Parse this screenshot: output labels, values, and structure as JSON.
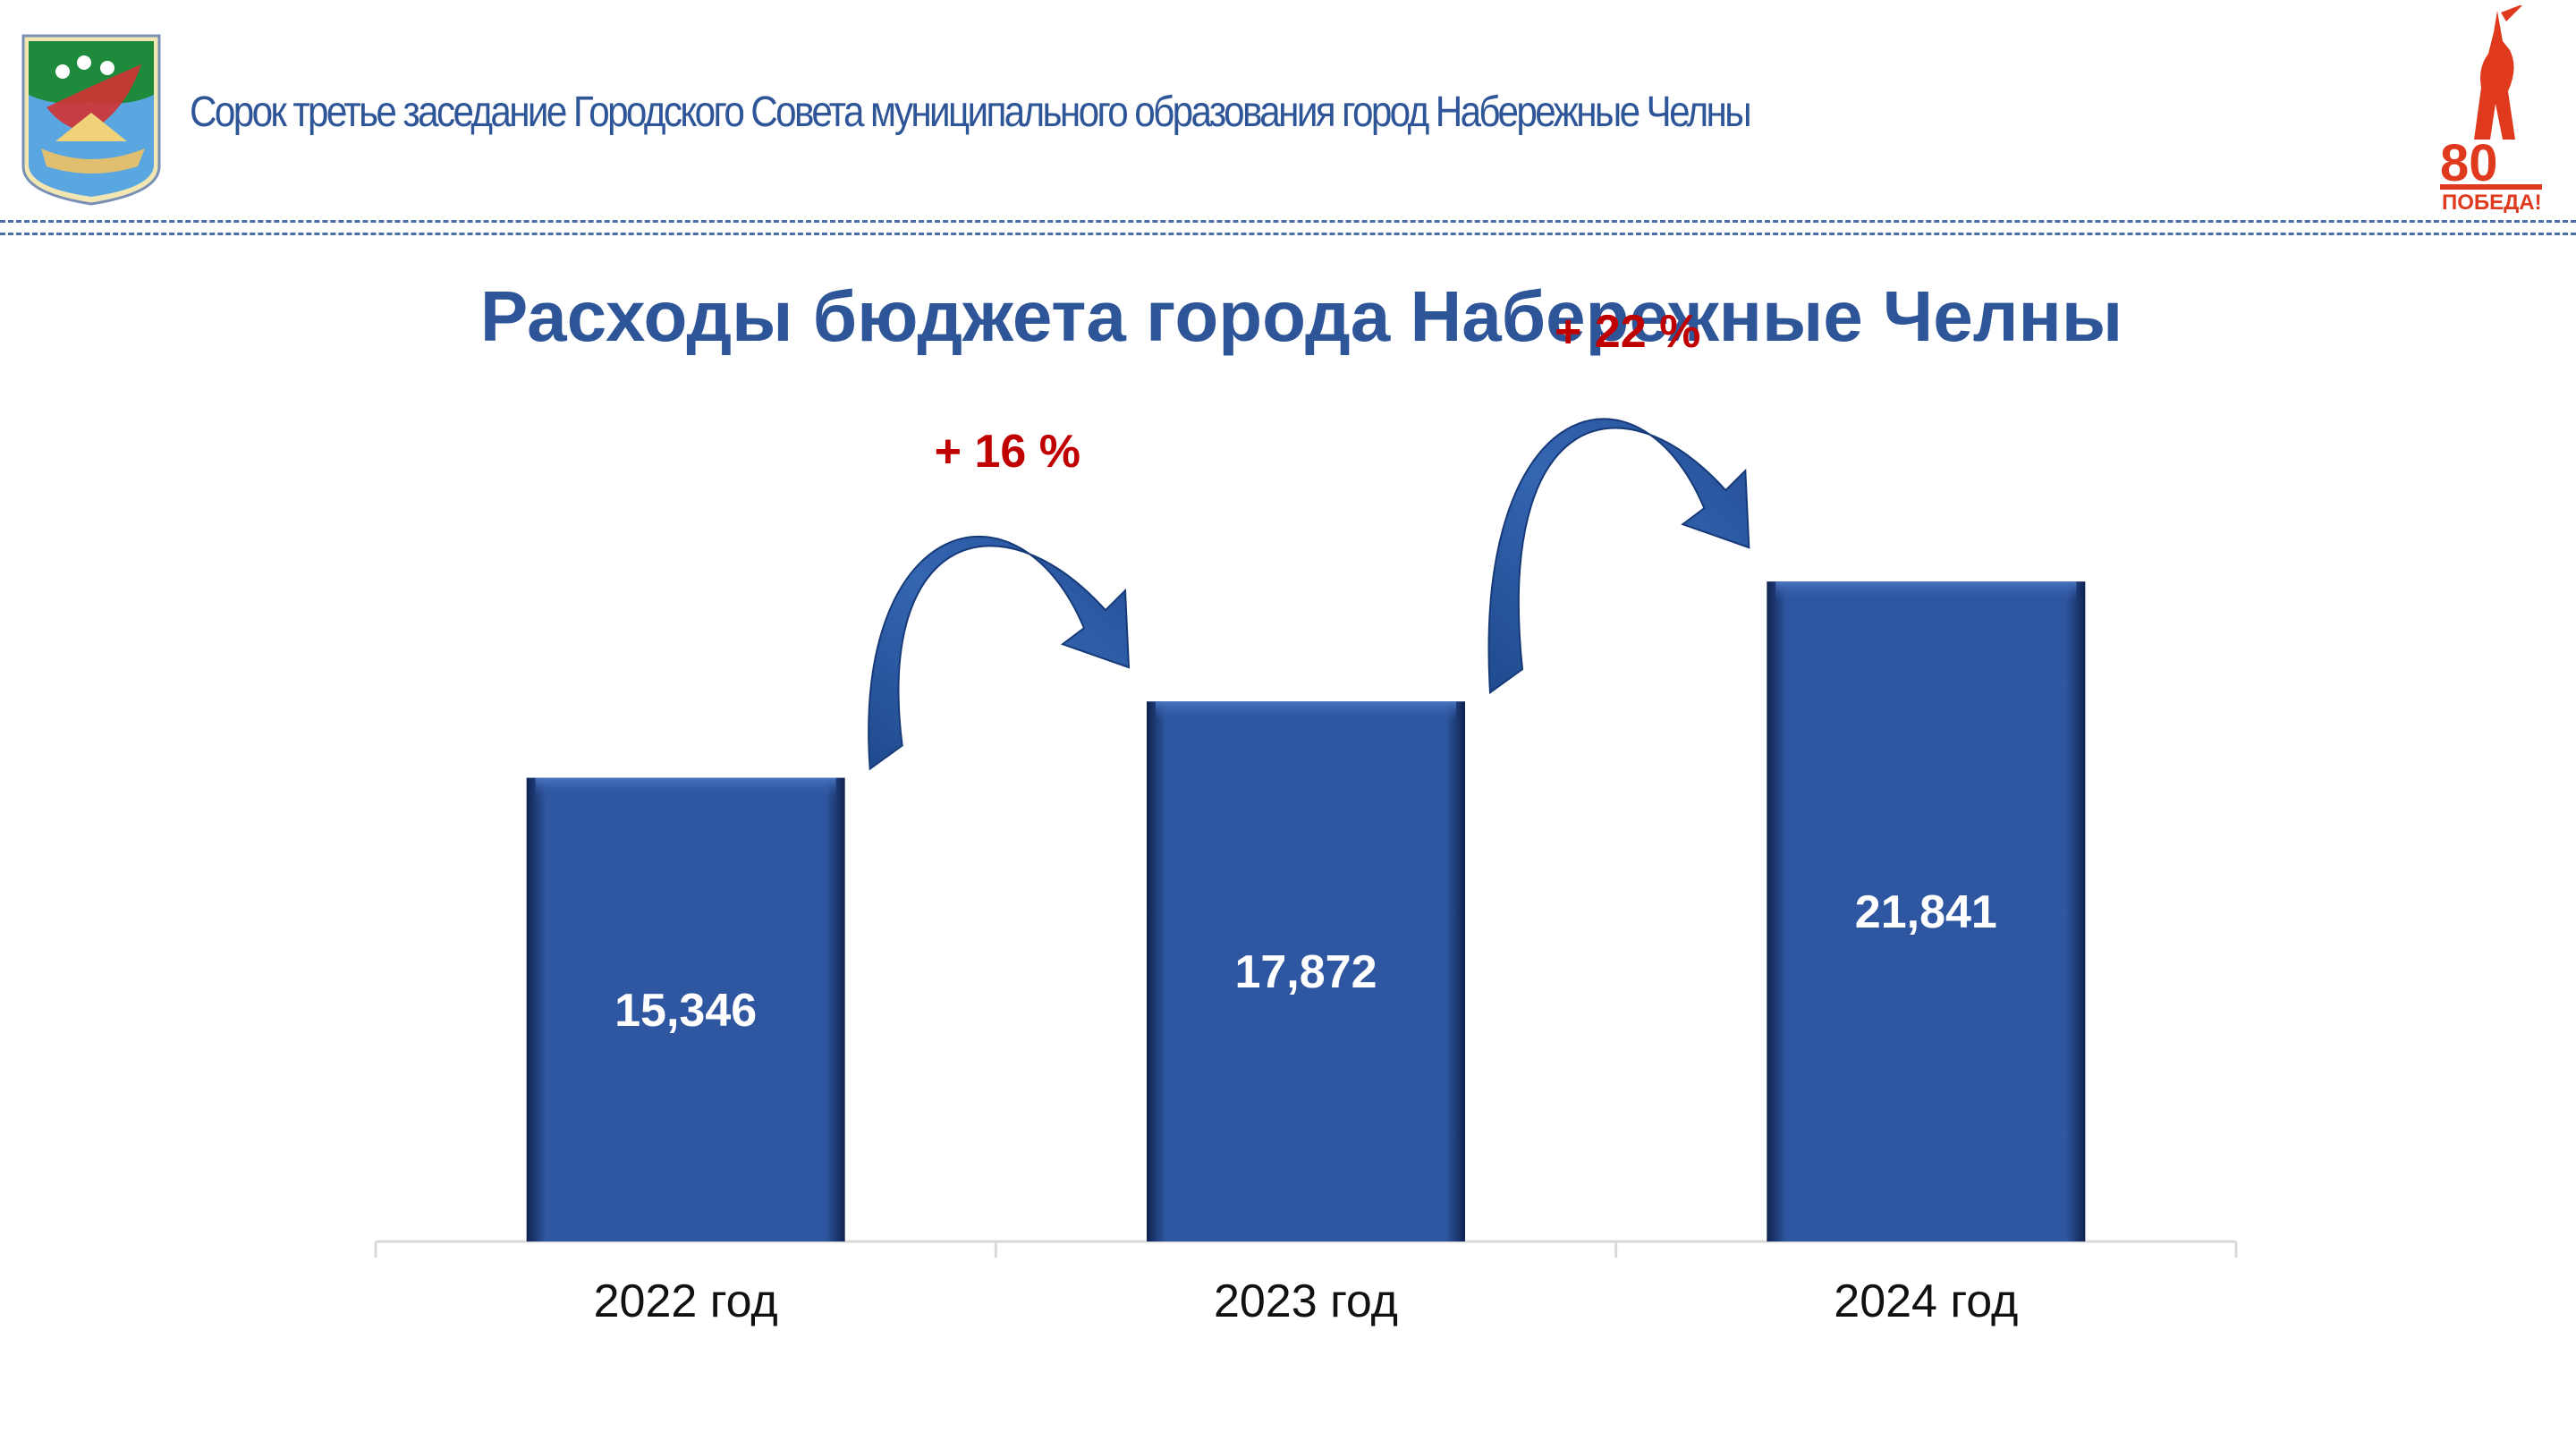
{
  "header": {
    "text": "Сорок третье заседание Городского Совета муниципального образования город Набережные Челны"
  },
  "logos": {
    "left": "city-coat-of-arms-logo",
    "right": {
      "text_top": "80",
      "text_bottom": "ПОБЕДА!",
      "color": "#e03a1e"
    }
  },
  "chart_data": {
    "type": "bar",
    "title": "Расходы бюджета города Набережные Челны",
    "categories": [
      "2022 год",
      "2023 год",
      "2024 год"
    ],
    "values": [
      15346,
      17872,
      21841
    ],
    "value_labels": [
      "15,346",
      "17,872",
      "21,841"
    ],
    "xlabel": "",
    "ylabel": "",
    "ylim": [
      0,
      30000
    ],
    "grid": false,
    "legend": "none",
    "annotations": [
      {
        "from": "2022 год",
        "to": "2023 год",
        "text": "+ 16 %"
      },
      {
        "from": "2023 год",
        "to": "2024 год",
        "text": "+ 22 %"
      }
    ],
    "colors": {
      "bar": "#2f56a0",
      "arrow": "#2c5aa0",
      "growth_text": "#c00000",
      "title": "#2d5597"
    }
  }
}
